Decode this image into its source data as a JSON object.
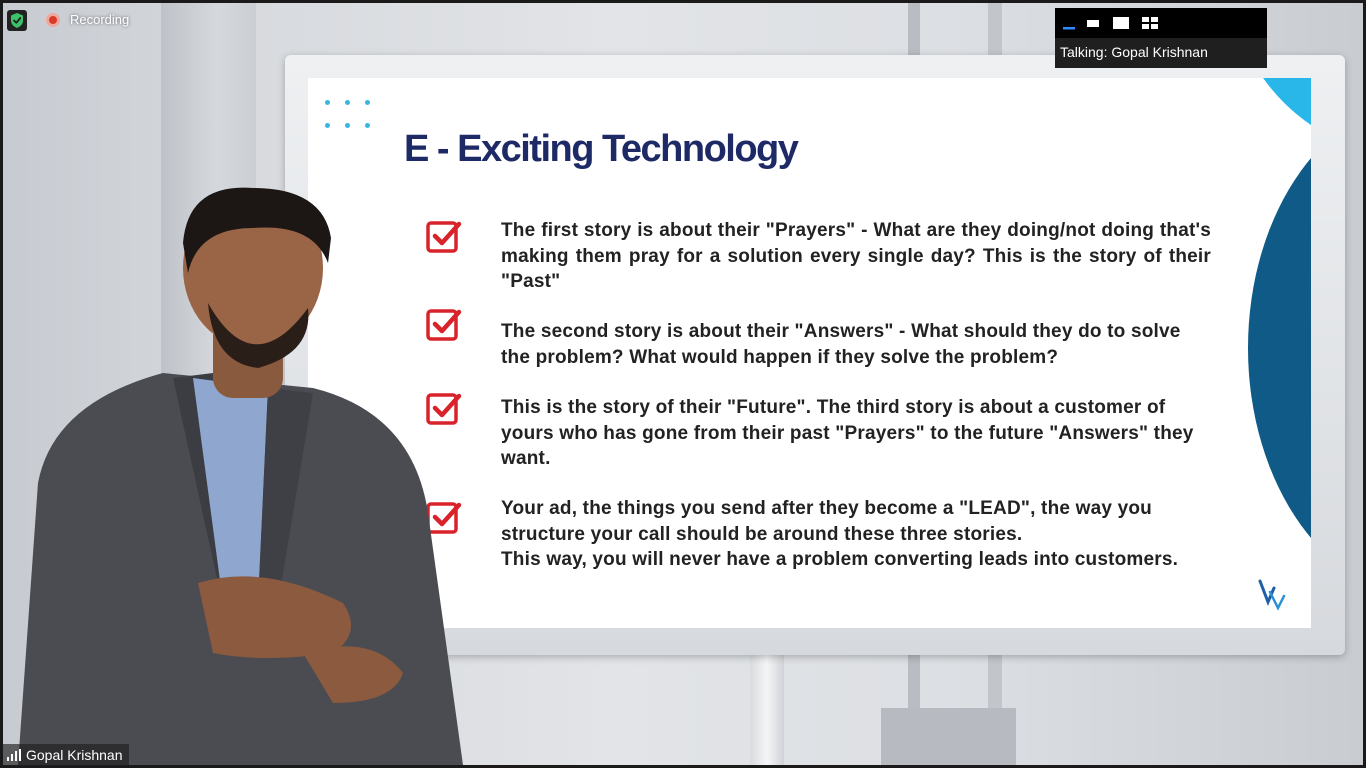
{
  "recording": {
    "label": "Recording"
  },
  "view_controls": {
    "talking_label": "Talking: Gopal Krishnan",
    "buttons": [
      "minimize-view",
      "speaker-strip-view",
      "speaker-view",
      "gallery-view"
    ]
  },
  "participant": {
    "name": "Gopal Krishnan"
  },
  "slide": {
    "title": "E - Exciting Technology",
    "bullets": [
      {
        "text": "The first story is about their \"Prayers\" - What are they doing/not doing that's making them pray for a solution every single day? This is the story of their \"Past\""
      },
      {
        "text": "The second story is about their \"Answers\" - What should they do to solve the problem? What would happen if they solve the problem?"
      },
      {
        "text": "This is the story of their \"Future\". The third story is about a customer of yours who has gone from their past \"Prayers\" to the future \"Answers\" they want."
      },
      {
        "line1": "Your ad, the things you send after they become a \"LEAD\", the way you structure your call should be around these three stories.",
        "line2": "This way, you will never have a problem converting leads into customers."
      }
    ]
  },
  "colors": {
    "title": "#1e2a66",
    "checkbox": "#d8232a",
    "accent_light": "#29b6e8",
    "accent_dark": "#0f5a86",
    "recording_dot": "#d83b2a",
    "shield": "#3cc36a"
  }
}
